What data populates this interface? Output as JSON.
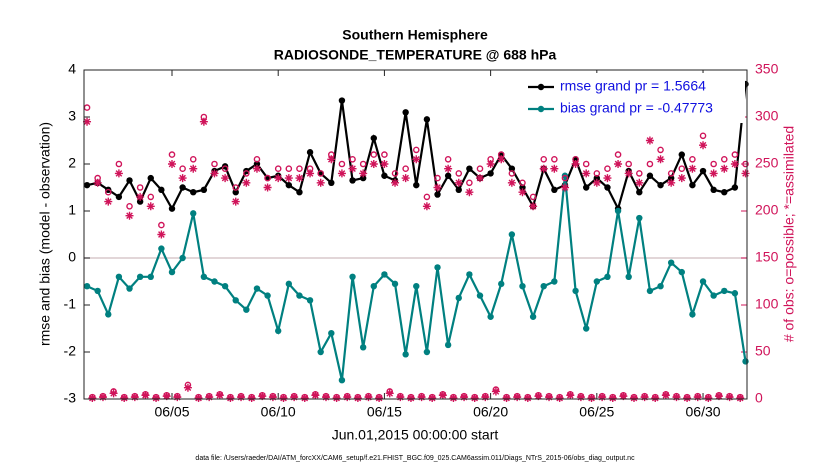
{
  "chart_data": {
    "type": "line",
    "title": "Southern Hemisphere",
    "subtitle": "RADIOSONDE_TEMPERATURE @ 688 hPa",
    "x_label": "Jun.01,2015 00:00:00 start",
    "y_label": "rmse and bias (model - observation)",
    "y2_label": "# of obs: o=possible; *=assimilated",
    "footnote": "data file: /Users/raeder/DAI/ATM_forcXX/CAM6_setup/f.e21.FHIST_BGC.f09_025.CAM6assim.011/Diags_NTrS_2015-06/obs_diag_output.nc",
    "x": [
      1,
      1.5,
      2,
      2.5,
      3,
      3.5,
      4,
      4.5,
      5,
      5.5,
      6,
      6.5,
      7,
      7.5,
      8,
      8.5,
      9,
      9.5,
      10,
      10.5,
      11,
      11.5,
      12,
      12.5,
      13,
      13.5,
      14,
      14.5,
      15,
      15.5,
      16,
      16.5,
      17,
      17.5,
      18,
      18.5,
      19,
      19.5,
      20,
      20.5,
      21,
      21.5,
      22,
      22.5,
      23,
      23.5,
      24,
      24.5,
      25,
      25.5,
      26,
      26.5,
      27,
      27.5,
      28,
      28.5,
      29,
      29.5,
      30,
      30.5,
      31,
      31.5,
      32
    ],
    "xlim": [
      0.857,
      32.07
    ],
    "xticks": [
      {
        "value": 5,
        "label": "06/05"
      },
      {
        "value": 10,
        "label": "06/10"
      },
      {
        "value": 15,
        "label": "06/15"
      },
      {
        "value": 20,
        "label": "06/20"
      },
      {
        "value": 25,
        "label": "06/25"
      },
      {
        "value": 30,
        "label": "06/30"
      }
    ],
    "ylim": [
      -3,
      4
    ],
    "yticks": [
      -3,
      -2,
      -1,
      0,
      1,
      2,
      3,
      4
    ],
    "y2lim": [
      0,
      350
    ],
    "y2ticks": [
      0,
      50,
      100,
      150,
      200,
      250,
      300,
      350
    ],
    "y2_color": "#d0145a",
    "zero_line": true,
    "legend": "upper right",
    "series": [
      {
        "name": "rmse grand pr = 1.5664",
        "color": "#000000",
        "marker": "dot",
        "values": [
          1.55,
          1.6,
          1.45,
          1.3,
          1.65,
          1.2,
          1.7,
          1.45,
          1.05,
          1.5,
          1.4,
          1.45,
          1.85,
          1.95,
          1.4,
          1.85,
          2.0,
          1.7,
          1.75,
          1.55,
          1.4,
          2.25,
          1.8,
          1.6,
          3.35,
          1.65,
          1.7,
          2.55,
          1.75,
          1.65,
          3.1,
          1.55,
          2.95,
          1.35,
          1.75,
          1.45,
          1.9,
          1.7,
          1.8,
          2.2,
          1.9,
          1.5,
          1.1,
          1.9,
          1.45,
          1.55,
          2.1,
          1.5,
          1.7,
          1.5,
          1.05,
          1.85,
          1.4,
          1.75,
          1.55,
          1.7,
          2.2,
          1.55,
          1.85,
          1.45,
          1.4,
          1.5,
          3.7
        ]
      },
      {
        "name": "bias grand pr = -0.47773",
        "color": "#008080",
        "marker": "dot",
        "values": [
          -0.6,
          -0.7,
          -1.2,
          -0.4,
          -0.65,
          -0.4,
          -0.4,
          0.2,
          -0.3,
          0.0,
          0.95,
          -0.4,
          -0.5,
          -0.6,
          -0.9,
          -1.1,
          -0.65,
          -0.8,
          -1.55,
          -0.55,
          -0.8,
          -0.9,
          -2.0,
          -1.6,
          -2.6,
          -0.4,
          -1.9,
          -0.6,
          -0.35,
          -0.55,
          -2.05,
          -0.6,
          -2.0,
          -0.2,
          -1.85,
          -0.85,
          -0.35,
          -0.8,
          -1.25,
          -0.55,
          0.5,
          -0.6,
          -1.25,
          -0.6,
          -0.5,
          1.75,
          -0.7,
          -1.5,
          -0.5,
          -0.4,
          1.0,
          -0.4,
          0.85,
          -0.7,
          -0.6,
          -0.1,
          -0.3,
          -1.2,
          -0.5,
          -0.8,
          -0.7,
          -0.75,
          -2.2
        ]
      },
      {
        "color": "#d0145a",
        "marker": "o",
        "axis": "y2",
        "values": [
          310,
          235,
          220,
          250,
          205,
          225,
          215,
          185,
          260,
          245,
          255,
          300,
          250,
          245,
          225,
          240,
          255,
          235,
          245,
          245,
          245,
          245,
          240,
          260,
          250,
          255,
          250,
          260,
          260,
          240,
          245,
          265,
          215,
          235,
          255,
          240,
          230,
          245,
          255,
          260,
          240,
          230,
          215,
          255,
          255,
          235,
          255,
          250,
          240,
          245,
          260,
          250,
          240,
          250,
          265,
          240,
          245,
          255,
          280,
          250,
          255,
          260,
          250
        ]
      },
      {
        "color": "#d0145a",
        "marker": "*",
        "axis": "y2",
        "values": [
          295,
          230,
          210,
          240,
          195,
          215,
          205,
          175,
          250,
          235,
          245,
          295,
          240,
          235,
          210,
          230,
          245,
          225,
          235,
          235,
          235,
          240,
          230,
          255,
          240,
          245,
          240,
          250,
          250,
          230,
          235,
          255,
          205,
          225,
          245,
          230,
          220,
          235,
          250,
          255,
          230,
          220,
          205,
          245,
          245,
          225,
          250,
          240,
          230,
          235,
          250,
          240,
          230,
          275,
          255,
          230,
          235,
          245,
          270,
          240,
          245,
          250,
          240
        ]
      },
      {
        "color": "#d0145a",
        "marker": "o",
        "axis": "y2",
        "x": [
          1.25,
          1.75,
          2.25,
          2.75,
          3.25,
          3.75,
          4.25,
          4.75,
          5.25,
          5.75,
          6.25,
          6.75,
          7.25,
          7.75,
          8.25,
          8.75,
          9.25,
          9.75,
          10.25,
          10.75,
          11.25,
          11.75,
          12.25,
          12.75,
          13.25,
          13.75,
          14.25,
          14.75,
          15.25,
          15.75,
          16.25,
          16.75,
          17.25,
          17.75,
          18.25,
          18.75,
          19.25,
          19.75,
          20.25,
          20.75,
          21.25,
          21.75,
          22.25,
          22.75,
          23.25,
          23.75,
          24.25,
          24.75,
          25.25,
          25.75,
          26.25,
          26.75,
          27.25,
          27.75,
          28.25,
          28.75,
          29.25,
          29.75,
          30.25,
          30.75,
          31.25,
          31.75
        ],
        "values": [
          2,
          3,
          8,
          2,
          3,
          5,
          2,
          4,
          3,
          15,
          2,
          3,
          5,
          2,
          3,
          2,
          4,
          3,
          2,
          3,
          2,
          5,
          3,
          2,
          3,
          2,
          3,
          2,
          8,
          3,
          2,
          3,
          2,
          5,
          2,
          3,
          2,
          3,
          10,
          2,
          3,
          2,
          4,
          3,
          2,
          5,
          3,
          2,
          3,
          2,
          4,
          2,
          3,
          2,
          5,
          3,
          2,
          3,
          2,
          4,
          3,
          2
        ]
      },
      {
        "color": "#d0145a",
        "marker": "*",
        "axis": "y2",
        "x": [
          1.25,
          1.75,
          2.25,
          2.75,
          3.25,
          3.75,
          4.25,
          4.75,
          5.25,
          5.75,
          6.25,
          6.75,
          7.25,
          7.75,
          8.25,
          8.75,
          9.25,
          9.75,
          10.25,
          10.75,
          11.25,
          11.75,
          12.25,
          12.75,
          13.25,
          13.75,
          14.25,
          14.75,
          15.25,
          15.75,
          16.25,
          16.75,
          17.25,
          17.75,
          18.25,
          18.75,
          19.25,
          19.75,
          20.25,
          20.75,
          21.25,
          21.75,
          22.25,
          22.75,
          23.25,
          23.75,
          24.25,
          24.75,
          25.25,
          25.75,
          26.25,
          26.75,
          27.25,
          27.75,
          28.25,
          28.75,
          29.25,
          29.75,
          30.25,
          30.75,
          31.25,
          31.75
        ],
        "values": [
          1,
          2,
          6,
          1,
          2,
          4,
          1,
          3,
          2,
          12,
          1,
          2,
          4,
          1,
          2,
          1,
          3,
          2,
          1,
          2,
          1,
          4,
          2,
          1,
          2,
          1,
          2,
          1,
          6,
          2,
          1,
          2,
          1,
          4,
          1,
          2,
          1,
          2,
          8,
          1,
          2,
          1,
          3,
          2,
          1,
          4,
          2,
          1,
          2,
          1,
          3,
          1,
          2,
          1,
          4,
          2,
          1,
          2,
          1,
          3,
          2,
          1
        ]
      }
    ]
  }
}
